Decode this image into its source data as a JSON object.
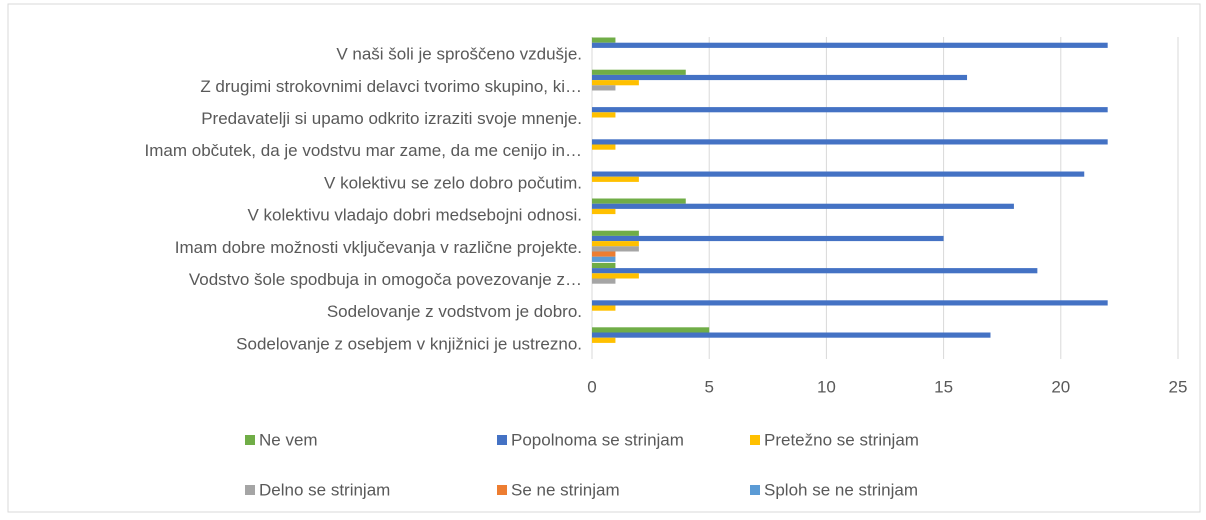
{
  "chart_data": {
    "type": "bar",
    "orientation": "horizontal",
    "categories": [
      "V naši šoli je sproščeno vzdušje.",
      "Z drugimi strokovnimi delavci tvorimo skupino, ki…",
      "Predavatelji si upamo odkrito izraziti svoje mnenje.",
      "Imam občutek, da je vodstvu mar zame, da me cenijo in…",
      "V kolektivu se zelo dobro počutim.",
      "V kolektivu vladajo dobri medsebojni odnosi.",
      "Imam dobre možnosti vključevanja v različne projekte.",
      "Vodstvo šole spodbuja in omogoča povezovanje z…",
      "Sodelovanje z vodstvom je dobro.",
      "Sodelovanje z osebjem v knjižnici je ustrezno."
    ],
    "series": [
      {
        "name": "Ne vem",
        "color": "#70ad47",
        "values": [
          1,
          4,
          0,
          0,
          0,
          4,
          2,
          1,
          0,
          5
        ]
      },
      {
        "name": "Popolnoma se strinjam",
        "color": "#4472c4",
        "values": [
          22,
          16,
          22,
          22,
          21,
          18,
          15,
          19,
          22,
          17
        ]
      },
      {
        "name": "Pretežno se strinjam",
        "color": "#ffc000",
        "values": [
          0,
          2,
          1,
          1,
          2,
          1,
          2,
          2,
          1,
          1
        ]
      },
      {
        "name": "Delno se strinjam",
        "color": "#a5a5a5",
        "values": [
          0,
          1,
          0,
          0,
          0,
          0,
          2,
          1,
          0,
          0
        ]
      },
      {
        "name": "Se ne strinjam",
        "color": "#ed7d31",
        "values": [
          0,
          0,
          0,
          0,
          0,
          0,
          1,
          0,
          0,
          0
        ]
      },
      {
        "name": "Sploh se ne strinjam",
        "color": "#5b9bd5",
        "values": [
          0,
          0,
          0,
          0,
          0,
          0,
          1,
          0,
          0,
          0
        ]
      }
    ],
    "xlim": [
      0,
      25
    ],
    "xticks": [
      0,
      5,
      10,
      15,
      20,
      25
    ],
    "grid": true,
    "legend": "bottom"
  }
}
